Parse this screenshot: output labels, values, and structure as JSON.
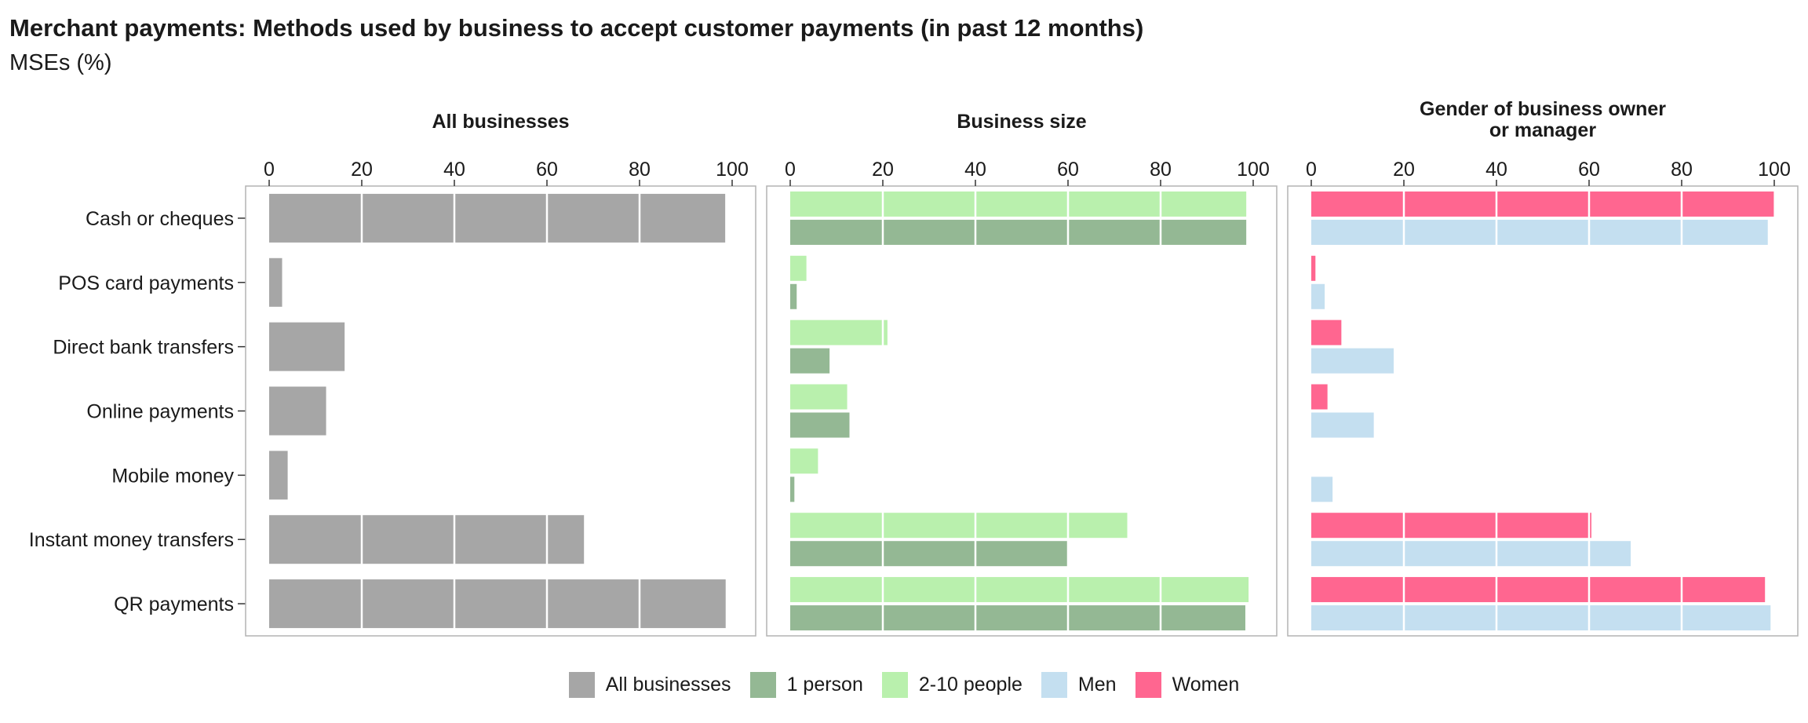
{
  "title": "Merchant payments: Methods used by business to accept customer payments (in past 12 months)",
  "subtitle": "MSEs (%)",
  "legend": [
    {
      "label": "All businesses",
      "color": "#a6a6a6"
    },
    {
      "label": "1 person",
      "color": "#94b894"
    },
    {
      "label": "2-10 people",
      "color": "#b9f0ad"
    },
    {
      "label": "Men",
      "color": "#c4dff0"
    },
    {
      "label": "Women",
      "color": "#ff6690"
    }
  ],
  "chart_data": {
    "type": "bar",
    "orientation": "horizontal",
    "categories": [
      "Cash or cheques",
      "POS card payments",
      "Direct bank transfers",
      "Online payments",
      "Mobile money",
      "Instant money transfers",
      "QR payments"
    ],
    "xlim": [
      0,
      100
    ],
    "xticks": [
      0,
      20,
      40,
      60,
      80,
      100
    ],
    "grid": true,
    "legend_position": "bottom",
    "panels": [
      {
        "title": [
          "All businesses"
        ],
        "series": [
          {
            "name": "All businesses",
            "color": "#a6a6a6",
            "values": [
              98.5,
              2.8,
              16.3,
              12.3,
              4.0,
              68,
              98.6
            ]
          }
        ]
      },
      {
        "title": [
          "Business size"
        ],
        "series": [
          {
            "name": "2-10 people",
            "color": "#b9f0ad",
            "values": [
              98.5,
              3.5,
              21,
              12.3,
              6.0,
              72.8,
              99
            ]
          },
          {
            "name": "1 person",
            "color": "#94b894",
            "values": [
              98.5,
              1.4,
              8.5,
              12.8,
              0.9,
              60,
              98.3
            ]
          }
        ]
      },
      {
        "title": [
          "Gender of business owner",
          "or manager"
        ],
        "series": [
          {
            "name": "Women",
            "color": "#ff6690",
            "values": [
              99.9,
              0.9,
              6.5,
              3.5,
              0,
              60.5,
              98
            ]
          },
          {
            "name": "Men",
            "color": "#c4dff0",
            "values": [
              98.6,
              2.9,
              17.8,
              13.5,
              4.6,
              69,
              99.2
            ]
          }
        ]
      }
    ]
  }
}
